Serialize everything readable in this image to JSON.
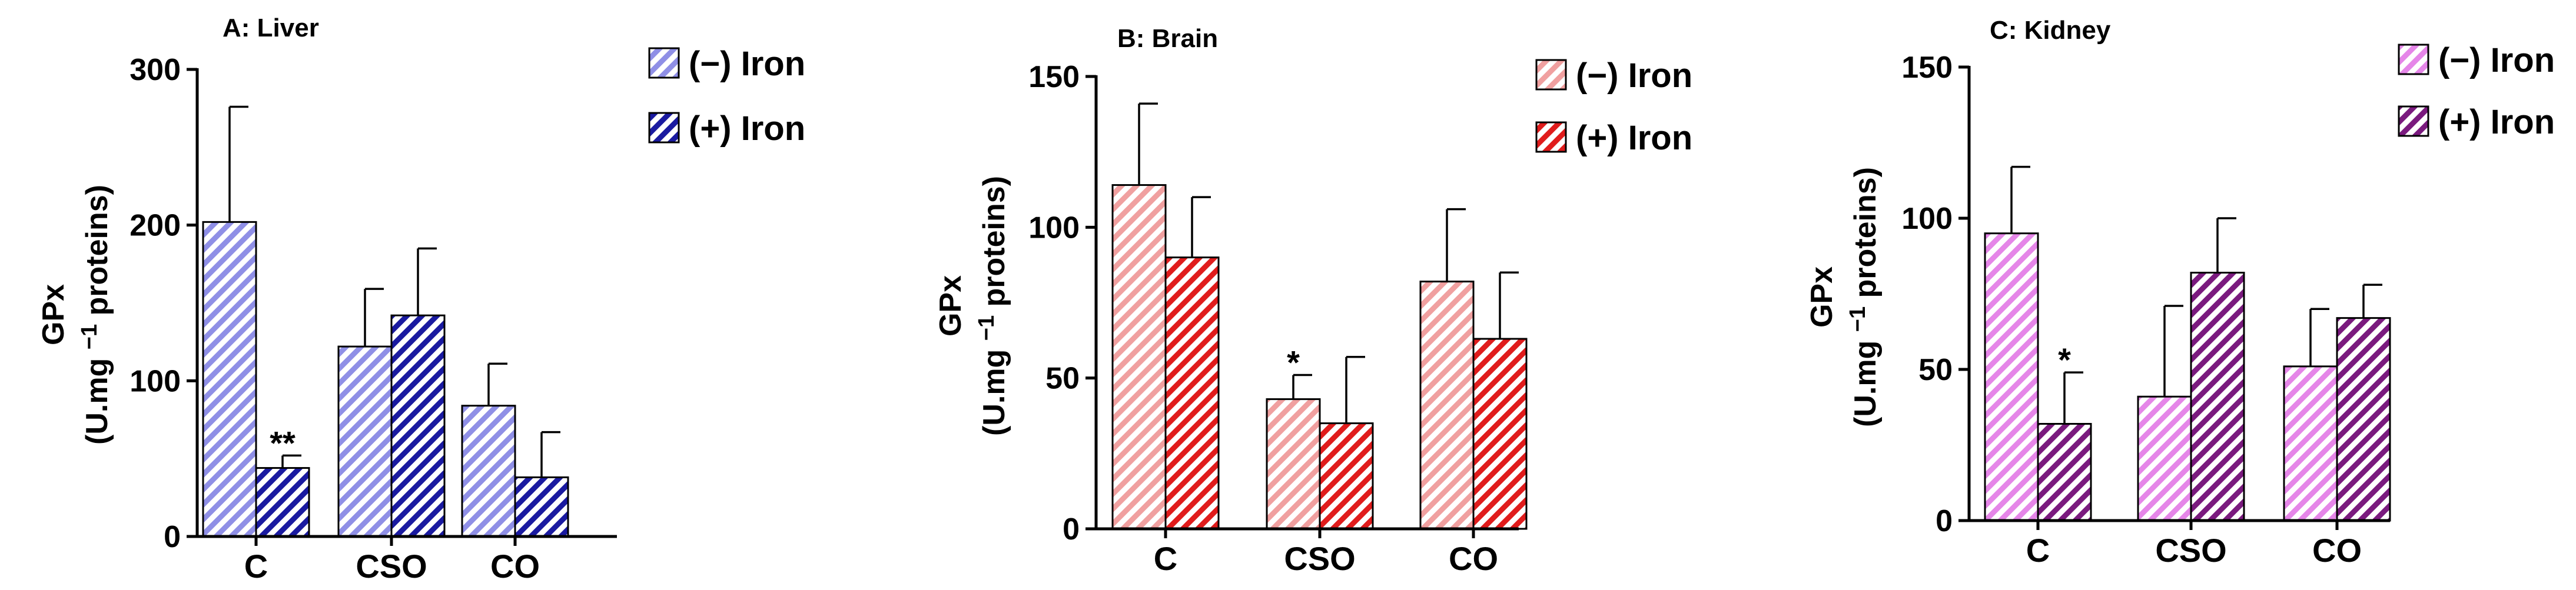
{
  "chart_data": [
    {
      "type": "bar",
      "panel": "A",
      "title": "A: Liver",
      "ylabel_line1": "GPx",
      "ylabel_line2_pre": "(U.mg ",
      "ylabel_sup": "−1",
      "ylabel_line2_post": " proteins)",
      "xlabel": "",
      "ylim": [
        0,
        300
      ],
      "yticks": [
        0,
        100,
        200,
        300
      ],
      "categories": [
        "C",
        "CSO",
        "CO"
      ],
      "series": [
        {
          "name": "(−) Iron",
          "color": "#8f8fe6",
          "values": [
            202,
            122,
            84
          ],
          "errors": [
            74,
            37,
            27
          ],
          "annotations": [
            "",
            "",
            ""
          ]
        },
        {
          "name": "(+) Iron",
          "color": "#1a1aa0",
          "values": [
            44,
            142,
            38
          ],
          "errors": [
            8,
            43,
            29
          ],
          "annotations": [
            "**",
            "",
            ""
          ]
        }
      ],
      "legend_position": "top-right"
    },
    {
      "type": "bar",
      "panel": "B",
      "title": "B: Brain",
      "ylabel_line1": "GPx",
      "ylabel_line2_pre": "(U.mg ",
      "ylabel_sup": "−1",
      "ylabel_line2_post": " proteins)",
      "xlabel": "",
      "ylim": [
        0,
        150
      ],
      "yticks": [
        0,
        50,
        100,
        150
      ],
      "categories": [
        "C",
        "CSO",
        "CO"
      ],
      "series": [
        {
          "name": "(−) Iron",
          "color": "#f0a0a0",
          "values": [
            114,
            43,
            82
          ],
          "errors": [
            27,
            8,
            24
          ],
          "annotations": [
            "",
            "*",
            ""
          ]
        },
        {
          "name": "(+) Iron",
          "color": "#e01c1c",
          "values": [
            90,
            35,
            63
          ],
          "errors": [
            20,
            22,
            22
          ],
          "annotations": [
            "",
            "",
            ""
          ]
        }
      ],
      "legend_position": "top-right"
    },
    {
      "type": "bar",
      "panel": "C",
      "title": "C: Kidney",
      "ylabel_line1": "GPx",
      "ylabel_line2_pre": "(U.mg ",
      "ylabel_sup": "−1",
      "ylabel_line2_post": " proteins)",
      "xlabel": "",
      "ylim": [
        0,
        150
      ],
      "yticks": [
        0,
        50,
        100,
        150
      ],
      "categories": [
        "C",
        "CSO",
        "CO"
      ],
      "series": [
        {
          "name": "(−) Iron",
          "color": "#e586e8",
          "values": [
            95,
            41,
            51
          ],
          "errors": [
            22,
            30,
            19
          ],
          "annotations": [
            "",
            "",
            ""
          ]
        },
        {
          "name": "(+) Iron",
          "color": "#7a1a7e",
          "values": [
            32,
            82,
            67
          ],
          "errors": [
            17,
            18,
            11
          ],
          "annotations": [
            "*",
            "",
            ""
          ]
        }
      ],
      "legend_position": "top-right"
    }
  ]
}
